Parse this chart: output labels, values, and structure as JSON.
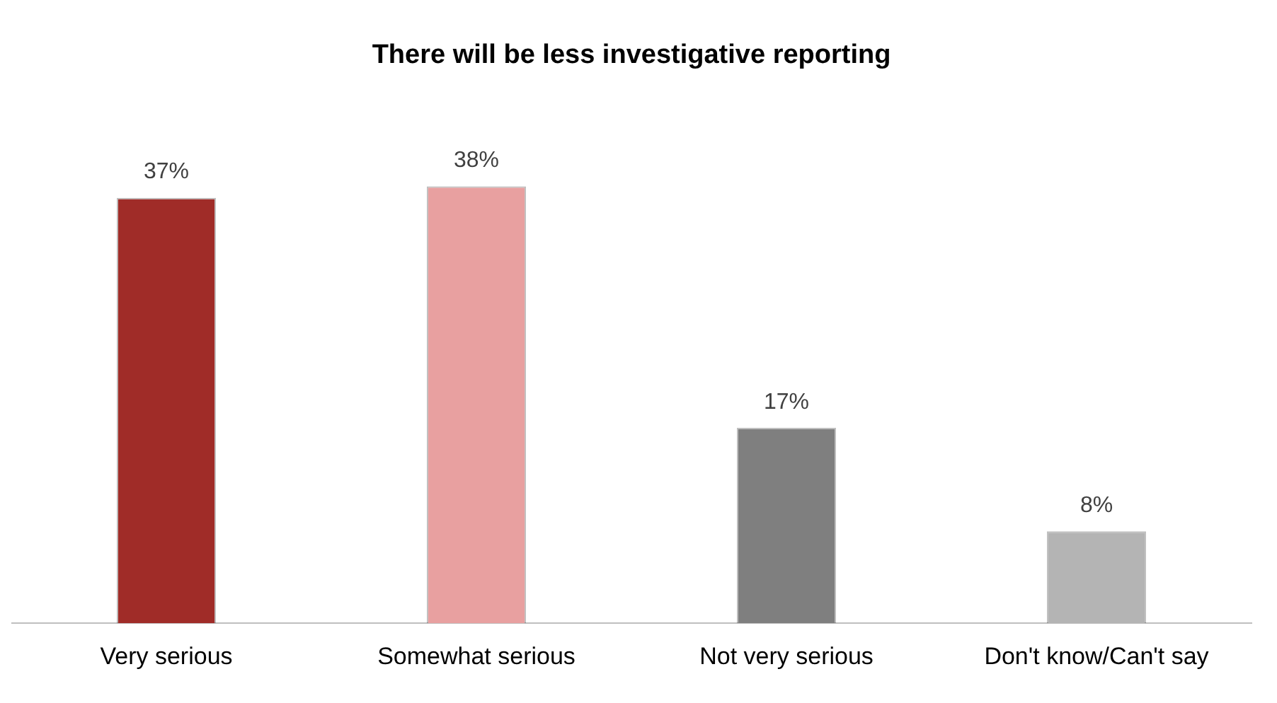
{
  "chart_data": {
    "type": "bar",
    "title": "There will be less investigative reporting",
    "categories": [
      "Very serious",
      "Somewhat serious",
      "Not very serious",
      "Don't know/Can't say"
    ],
    "values": [
      37,
      38,
      17,
      8
    ],
    "colors": [
      "#a02c28",
      "#e8a0a0",
      "#7f7f7f",
      "#b4b4b4"
    ],
    "value_labels": [
      "37%",
      "38%",
      "17%",
      "8%"
    ],
    "grid": false,
    "legend": false
  }
}
